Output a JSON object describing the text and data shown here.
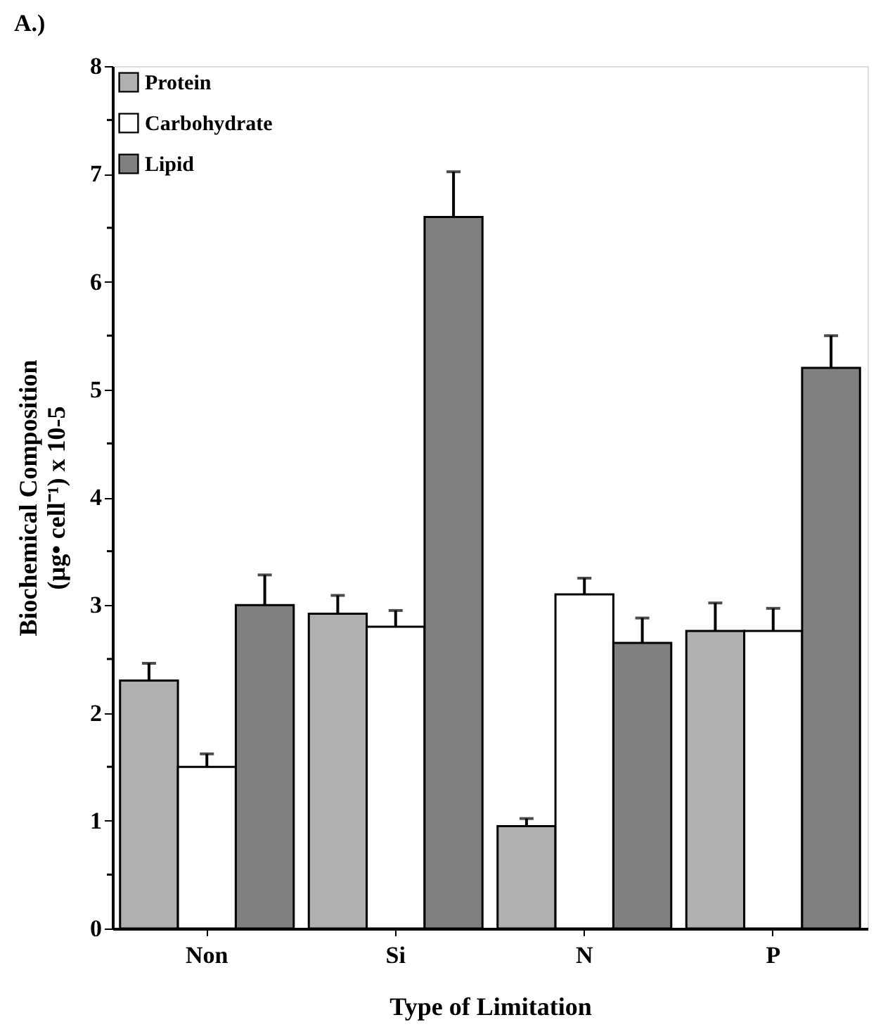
{
  "chart_data": {
    "type": "bar",
    "title": "A.)",
    "xlabel": "Type of Limitation",
    "ylabel": "Biochemical Composition\n(µg• cell⁻¹) x 10-5",
    "categories": [
      "Non",
      "Si",
      "N",
      "P"
    ],
    "series": [
      {
        "name": "Protein",
        "color": "#b0b0b0",
        "values": [
          2.3,
          2.92,
          0.95,
          2.76
        ],
        "errors": [
          [
            2.3,
            2.46
          ],
          [
            2.92,
            3.09
          ],
          [
            0.95,
            1.02
          ],
          [
            2.76,
            3.02
          ]
        ]
      },
      {
        "name": "Carbohydrate",
        "color": "#ffffff",
        "values": [
          1.5,
          2.8,
          3.1,
          2.76
        ],
        "errors": [
          [
            1.5,
            1.62
          ],
          [
            2.8,
            2.95
          ],
          [
            3.1,
            3.25
          ],
          [
            2.76,
            2.97
          ]
        ]
      },
      {
        "name": "Lipid",
        "color": "#808080",
        "values": [
          3.0,
          6.6,
          2.65,
          5.2
        ],
        "errors": [
          [
            3.0,
            3.28
          ],
          [
            6.6,
            7.02
          ],
          [
            2.65,
            2.88
          ],
          [
            5.2,
            5.5
          ]
        ]
      }
    ],
    "ylim": [
      0,
      8
    ],
    "yticks": [
      0,
      {
        "value": 0.5,
        "label": null
      },
      1,
      {
        "value": 1.5,
        "label": null
      },
      2,
      {
        "value": 2.5,
        "label": null
      },
      3,
      {
        "value": 3.5,
        "label": null
      },
      4,
      {
        "value": 4.5,
        "label": null
      },
      5,
      {
        "value": 5.5,
        "label": null
      },
      6,
      {
        "value": 6.5,
        "label": null
      },
      7,
      {
        "value": 7.5,
        "label": null
      },
      8
    ],
    "grid": false,
    "legend": "top left"
  }
}
